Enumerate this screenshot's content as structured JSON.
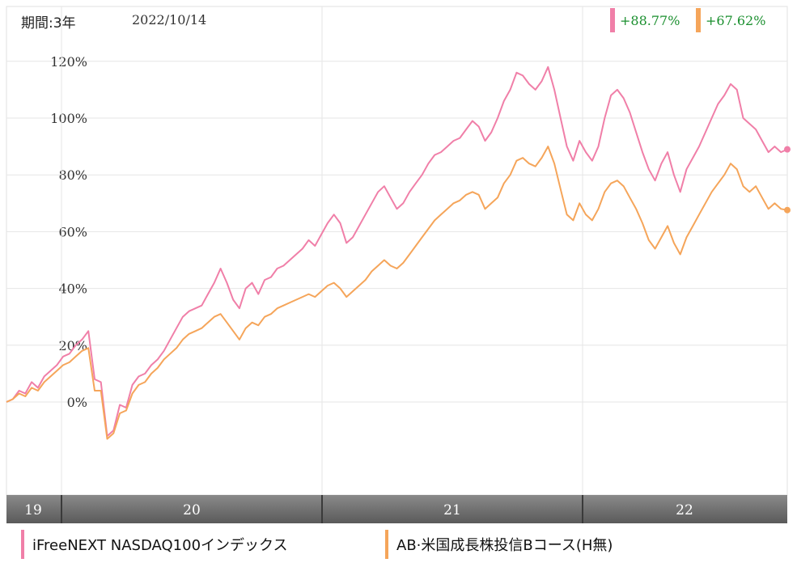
{
  "header": {
    "period_label": "期間:3年",
    "date": "2022/10/14"
  },
  "returns": [
    {
      "value": "+88.77%",
      "color": "#f07fa8"
    },
    {
      "value": "+67.62%",
      "color": "#f5a55a"
    }
  ],
  "chart_data": {
    "type": "line",
    "y_tick_labels": [
      "120%",
      "100%",
      "80%",
      "60%",
      "40%",
      "20%",
      "0%"
    ],
    "y_ticks": [
      120,
      100,
      80,
      60,
      40,
      20,
      0
    ],
    "ylim": [
      -30,
      130
    ],
    "x_labels": [
      "19",
      "20",
      "21",
      "22"
    ],
    "grid": true,
    "series": [
      {
        "name": "iFreeNEXT NASDAQ100インデックス",
        "color": "#f07fa8",
        "values": [
          0,
          1,
          4,
          3,
          7,
          5,
          9,
          11,
          13,
          16,
          17,
          20,
          22,
          25,
          8,
          7,
          -12,
          -10,
          -1,
          -2,
          6,
          9,
          10,
          13,
          15,
          18,
          22,
          26,
          30,
          32,
          33,
          34,
          38,
          42,
          47,
          42,
          36,
          33,
          40,
          42,
          38,
          43,
          44,
          47,
          48,
          50,
          52,
          54,
          57,
          55,
          59,
          63,
          66,
          63,
          56,
          58,
          62,
          66,
          70,
          74,
          76,
          72,
          68,
          70,
          74,
          77,
          80,
          84,
          87,
          88,
          90,
          92,
          93,
          96,
          99,
          97,
          92,
          95,
          100,
          106,
          110,
          116,
          115,
          112,
          110,
          113,
          118,
          110,
          100,
          90,
          85,
          92,
          88,
          85,
          90,
          100,
          108,
          110,
          107,
          102,
          95,
          88,
          82,
          78,
          84,
          88,
          80,
          74,
          82,
          86,
          90,
          95,
          100,
          105,
          108,
          112,
          110,
          100,
          98,
          96,
          92,
          88,
          90,
          88,
          89
        ],
        "label": "+88.77%"
      },
      {
        "name": "AB·米国成長株投信Bコース(H無)",
        "color": "#f5a55a",
        "values": [
          0,
          1,
          3,
          2,
          5,
          4,
          7,
          9,
          11,
          13,
          14,
          16,
          18,
          19,
          4,
          4,
          -13,
          -11,
          -4,
          -3,
          3,
          6,
          7,
          10,
          12,
          15,
          17,
          19,
          22,
          24,
          25,
          26,
          28,
          30,
          31,
          28,
          25,
          22,
          26,
          28,
          27,
          30,
          31,
          33,
          34,
          35,
          36,
          37,
          38,
          37,
          39,
          41,
          42,
          40,
          37,
          39,
          41,
          43,
          46,
          48,
          50,
          48,
          47,
          49,
          52,
          55,
          58,
          61,
          64,
          66,
          68,
          70,
          71,
          73,
          74,
          73,
          68,
          70,
          72,
          77,
          80,
          85,
          86,
          84,
          83,
          86,
          90,
          84,
          75,
          66,
          64,
          70,
          66,
          64,
          68,
          74,
          77,
          78,
          76,
          72,
          68,
          63,
          57,
          54,
          58,
          62,
          56,
          52,
          58,
          62,
          66,
          70,
          74,
          77,
          80,
          84,
          82,
          76,
          74,
          76,
          72,
          68,
          70,
          68,
          67.6
        ],
        "label": "+67.62%"
      }
    ]
  },
  "legend": [
    {
      "label": "iFreeNEXT NASDAQ100インデックス",
      "color": "#f07fa8"
    },
    {
      "label": "AB·米国成長株投信Bコース(H無)",
      "color": "#f5a55a"
    }
  ]
}
